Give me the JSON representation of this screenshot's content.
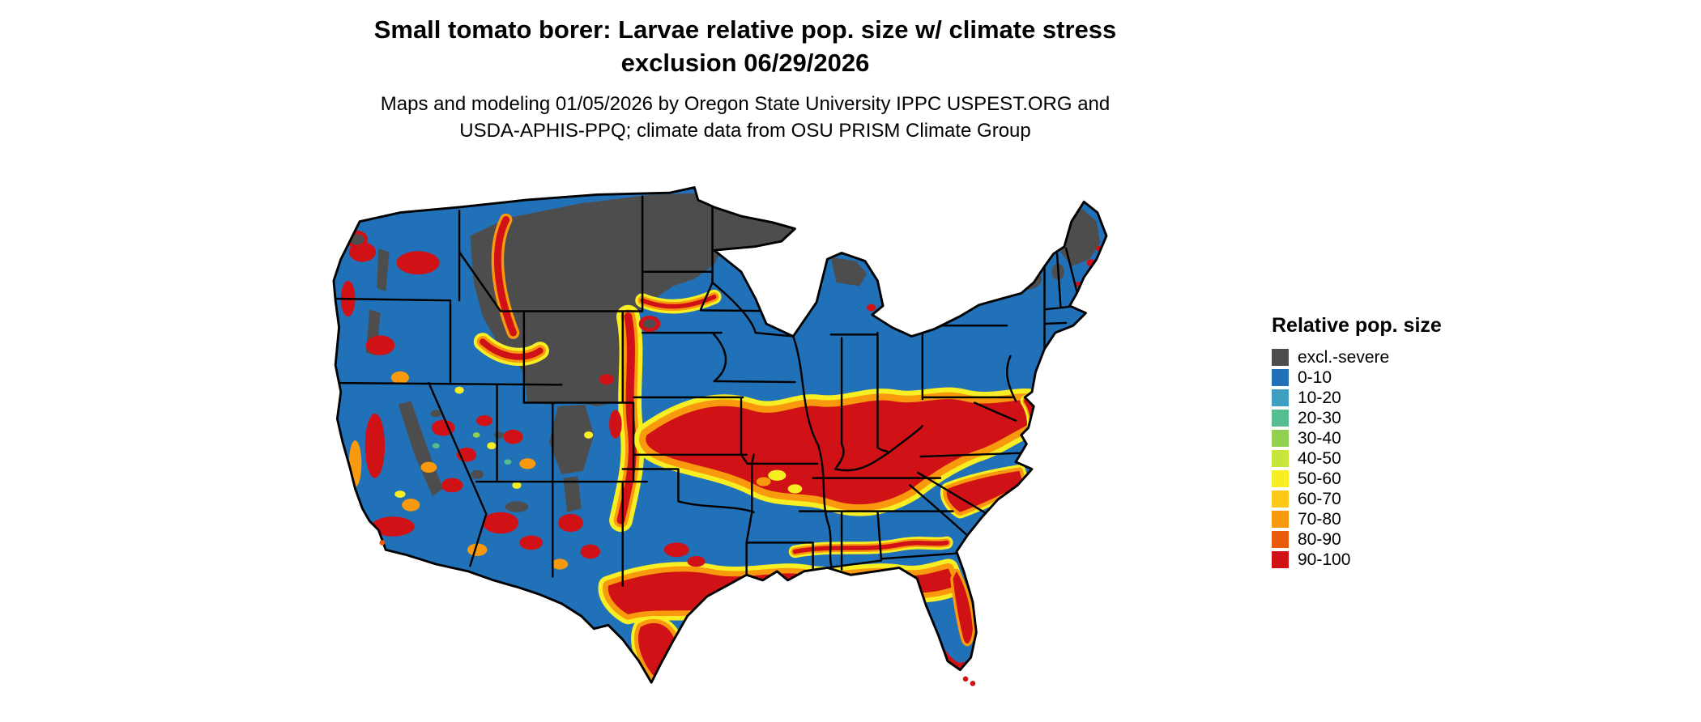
{
  "title": {
    "line1": "Small tomato borer: Larvae relative pop. size w/ climate stress",
    "line2": "exclusion 06/29/2026"
  },
  "subtitle": {
    "line1": "Maps and modeling 01/05/2026 by Oregon State University IPPC USPEST.ORG and",
    "line2": "USDA-APHIS-PPQ; climate data from OSU PRISM Climate Group"
  },
  "legend": {
    "title": "Relative pop. size",
    "items": [
      {
        "label": "excl.-severe",
        "color": "#4d4d4d"
      },
      {
        "label": "0-10",
        "color": "#2171b8"
      },
      {
        "label": "10-20",
        "color": "#3f9fc1"
      },
      {
        "label": "20-30",
        "color": "#56bd8f"
      },
      {
        "label": "30-40",
        "color": "#92d052"
      },
      {
        "label": "40-50",
        "color": "#c7e63b"
      },
      {
        "label": "50-60",
        "color": "#f7ee23"
      },
      {
        "label": "60-70",
        "color": "#fbc818"
      },
      {
        "label": "70-80",
        "color": "#f8990e"
      },
      {
        "label": "80-90",
        "color": "#ea5a0b"
      },
      {
        "label": "90-100",
        "color": "#d01217"
      }
    ]
  },
  "map_colors": {
    "state_border": "#000000",
    "background": "#ffffff",
    "water": "#ffffff"
  }
}
